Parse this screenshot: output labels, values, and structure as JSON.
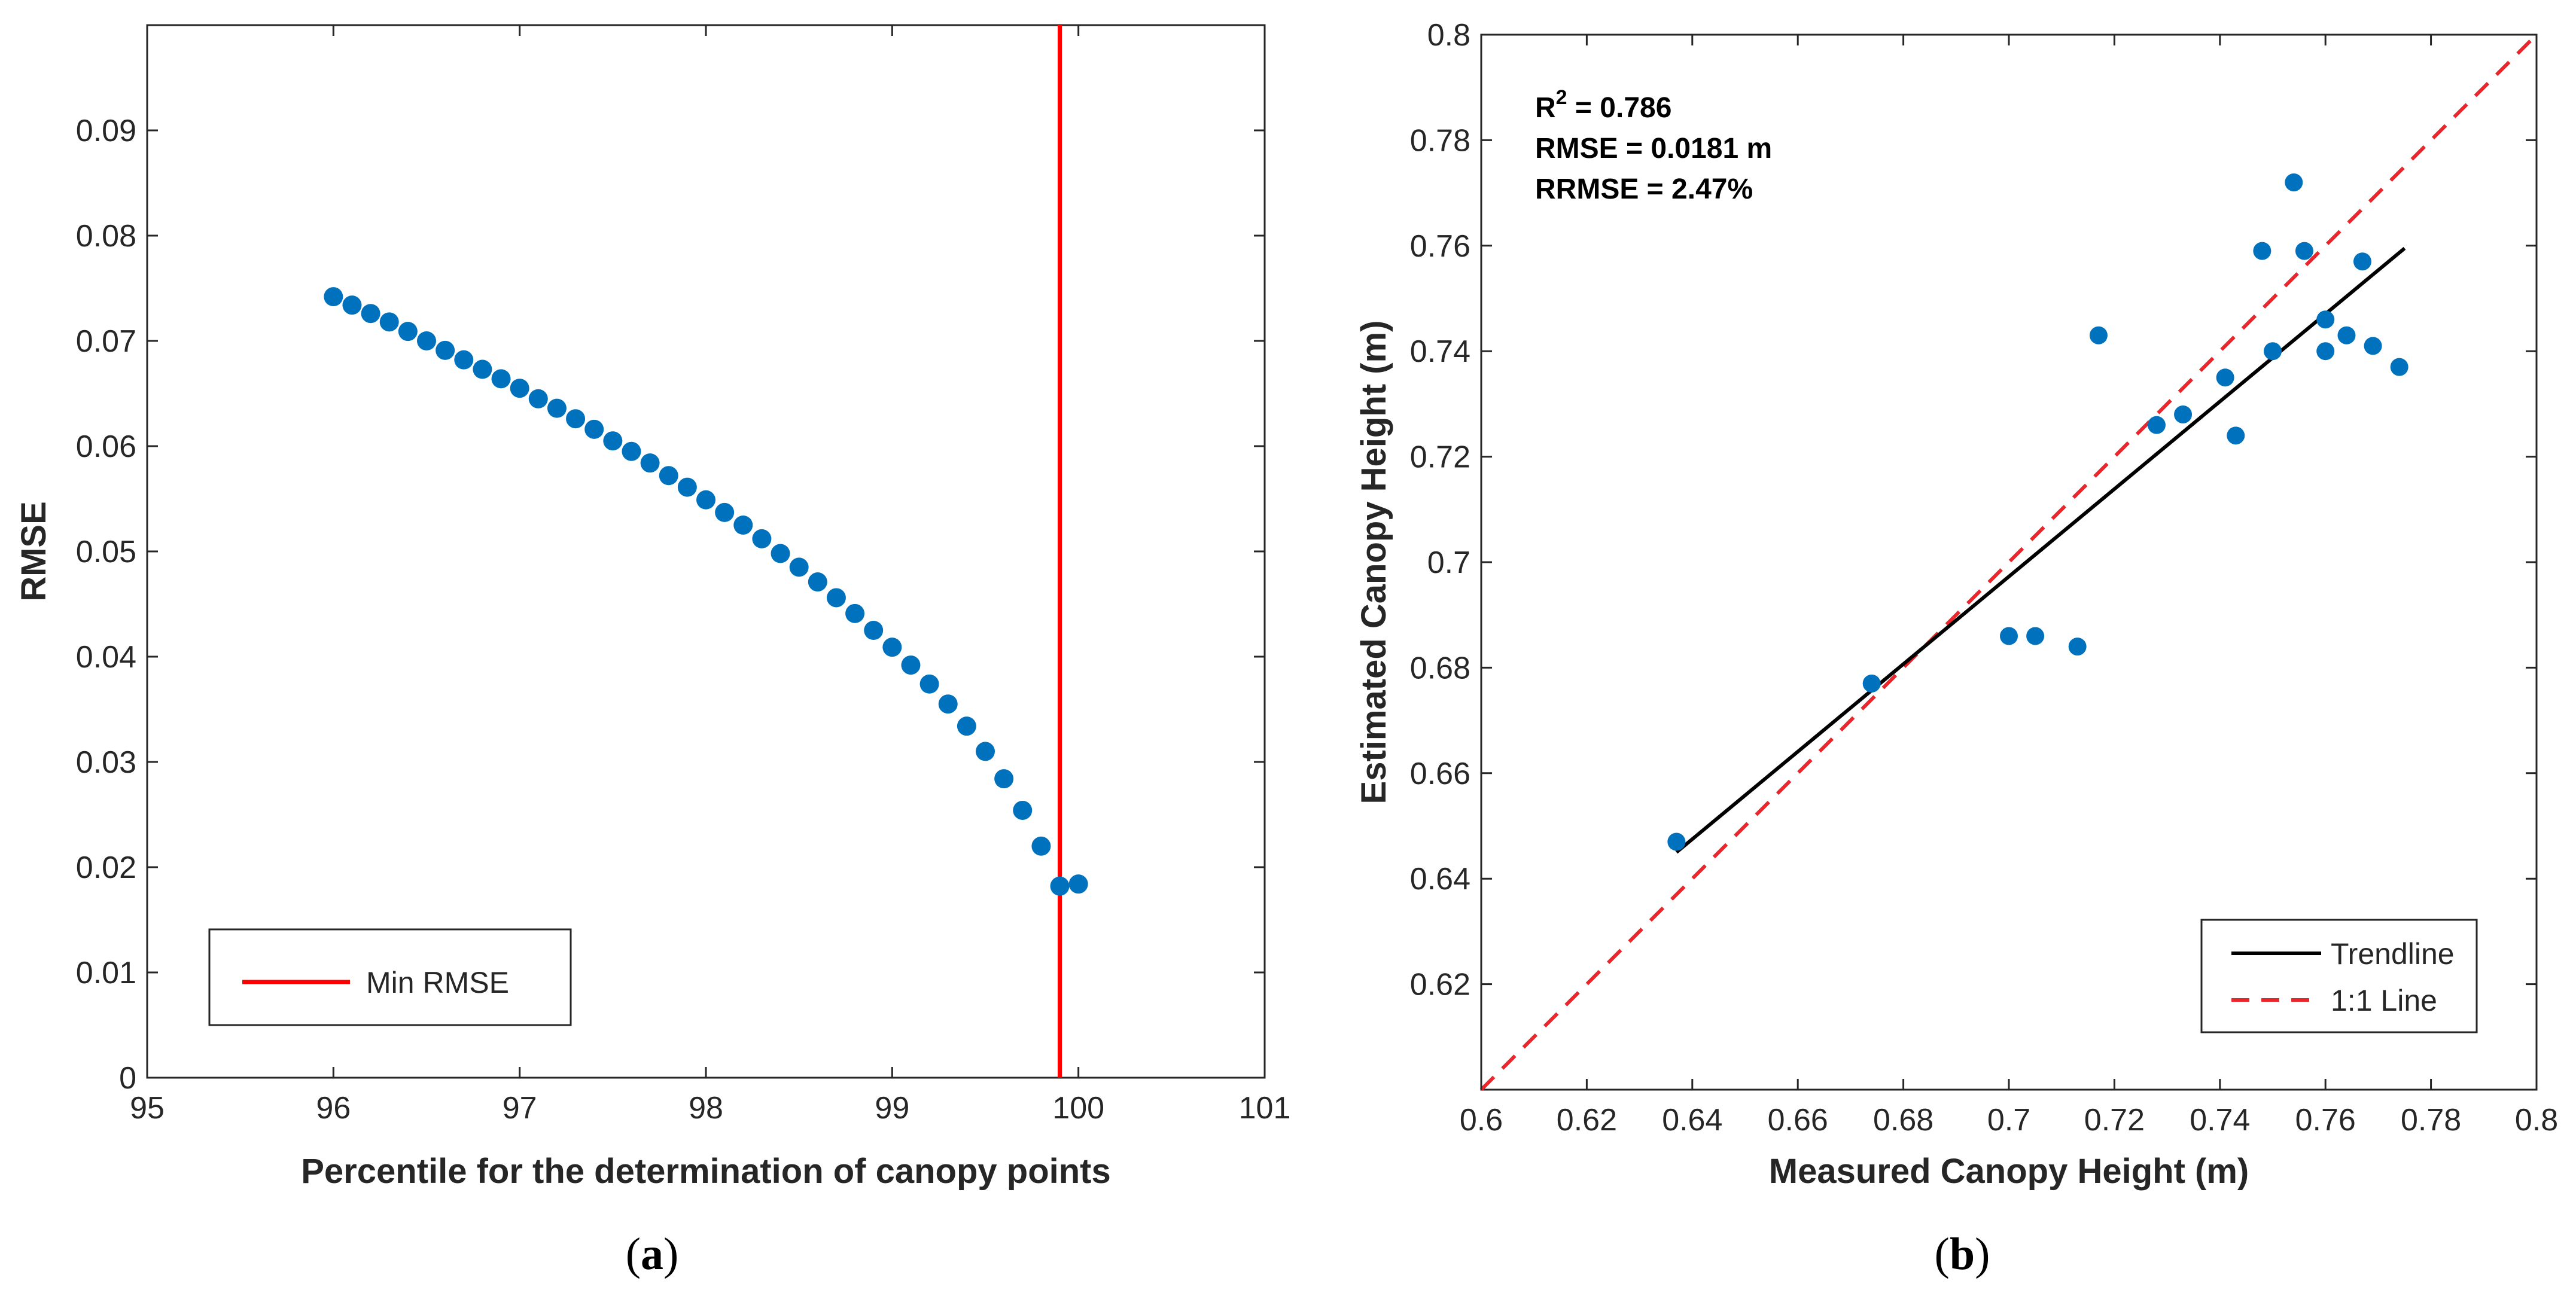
{
  "chart_data": [
    {
      "id": "a",
      "type": "scatter",
      "caption_letter": "a",
      "xlabel": "Percentile for the determination of canopy points",
      "ylabel": "RMSE",
      "xlim": [
        95,
        101
      ],
      "ylim": [
        0,
        0.1
      ],
      "xticks": [
        95,
        96,
        97,
        98,
        99,
        100,
        101
      ],
      "xtick_labels": [
        "95",
        "96",
        "97",
        "98",
        "99",
        "100",
        "101"
      ],
      "yticks": [
        0,
        0.01,
        0.02,
        0.03,
        0.04,
        0.05,
        0.06,
        0.07,
        0.08,
        0.09
      ],
      "ytick_labels": [
        "0",
        "0.01",
        "0.02",
        "0.03",
        "0.04",
        "0.05",
        "0.06",
        "0.07",
        "0.08",
        "0.09"
      ],
      "grid": false,
      "series": [
        {
          "name": "RMSE",
          "color": "#0072BD",
          "x": [
            96.0,
            96.1,
            96.2,
            96.3,
            96.4,
            96.5,
            96.6,
            96.7,
            96.8,
            96.9,
            97.0,
            97.1,
            97.2,
            97.3,
            97.4,
            97.5,
            97.6,
            97.7,
            97.8,
            97.9,
            98.0,
            98.1,
            98.2,
            98.3,
            98.4,
            98.5,
            98.6,
            98.7,
            98.8,
            98.9,
            99.0,
            99.1,
            99.2,
            99.3,
            99.4,
            99.5,
            99.6,
            99.7,
            99.8,
            99.9,
            100.0
          ],
          "y": [
            0.0742,
            0.0734,
            0.0726,
            0.0718,
            0.0709,
            0.07,
            0.0691,
            0.0682,
            0.0673,
            0.0664,
            0.0655,
            0.0645,
            0.0636,
            0.0626,
            0.0616,
            0.0605,
            0.0595,
            0.0584,
            0.0572,
            0.0561,
            0.0549,
            0.0537,
            0.0525,
            0.0512,
            0.0498,
            0.0485,
            0.0471,
            0.0456,
            0.0441,
            0.0425,
            0.0409,
            0.0392,
            0.0374,
            0.0355,
            0.0334,
            0.031,
            0.0284,
            0.0254,
            0.022,
            0.0182,
            0.0184
          ]
        }
      ],
      "vline": {
        "name": "Min RMSE",
        "x": 99.9,
        "color": "#FF0000"
      },
      "legend": {
        "position": "bottom-left",
        "entries": [
          "Min RMSE"
        ]
      }
    },
    {
      "id": "b",
      "type": "scatter",
      "caption_letter": "b",
      "xlabel": "Measured Canopy Height (m)",
      "ylabel": "Estimated Canopy Height (m)",
      "xlim": [
        0.6,
        0.8
      ],
      "ylim": [
        0.6,
        0.8
      ],
      "xticks": [
        0.6,
        0.62,
        0.64,
        0.66,
        0.68,
        0.7,
        0.72,
        0.74,
        0.76,
        0.78,
        0.8
      ],
      "xtick_labels": [
        "0.6",
        "0.62",
        "0.64",
        "0.66",
        "0.68",
        "0.7",
        "0.72",
        "0.74",
        "0.76",
        "0.78",
        "0.8"
      ],
      "yticks": [
        0.62,
        0.64,
        0.66,
        0.68,
        0.7,
        0.72,
        0.74,
        0.76,
        0.78,
        0.8
      ],
      "ytick_labels": [
        "0.62",
        "0.64",
        "0.66",
        "0.68",
        "0.7",
        "0.72",
        "0.74",
        "0.76",
        "0.78",
        "0.8"
      ],
      "grid": false,
      "series": [
        {
          "name": "Samples",
          "color": "#0072BD",
          "x": [
            0.637,
            0.674,
            0.7,
            0.705,
            0.713,
            0.717,
            0.728,
            0.733,
            0.741,
            0.743,
            0.748,
            0.75,
            0.754,
            0.756,
            0.76,
            0.76,
            0.764,
            0.767,
            0.769,
            0.774
          ],
          "y": [
            0.647,
            0.677,
            0.686,
            0.686,
            0.684,
            0.743,
            0.726,
            0.728,
            0.735,
            0.724,
            0.759,
            0.74,
            0.772,
            0.759,
            0.746,
            0.74,
            0.743,
            0.757,
            0.741,
            0.737
          ]
        }
      ],
      "trendline": {
        "name": "Trendline",
        "x": [
          0.637,
          0.775
        ],
        "y": [
          0.645,
          0.7595
        ],
        "color": "#000000"
      },
      "identity_line": {
        "name": "1:1 Line",
        "x": [
          0.6,
          0.8
        ],
        "y": [
          0.6,
          0.8
        ],
        "color": "#E8262B"
      },
      "stats": {
        "r2_prefix": "R",
        "r2_superscript": "2",
        "r2_value": " = 0.786",
        "rmse": "RMSE = 0.0181 m",
        "rrmse": "RRMSE = 2.47%"
      },
      "legend": {
        "position": "bottom-right",
        "entries": [
          "Trendline",
          "1:1 Line"
        ]
      }
    }
  ]
}
